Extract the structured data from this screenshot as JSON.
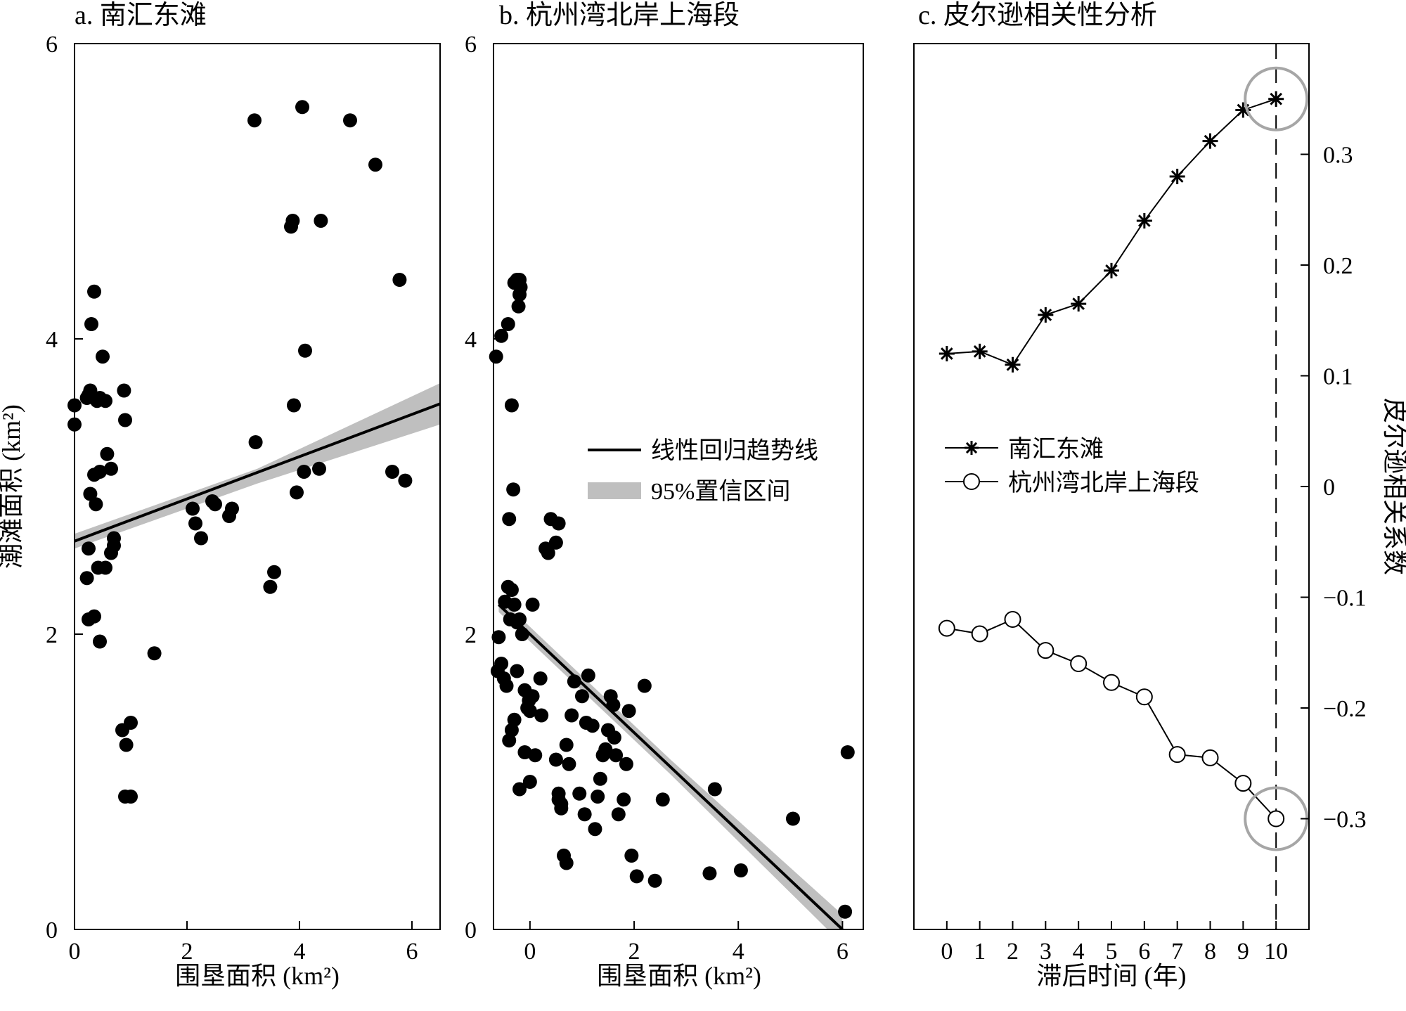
{
  "colors": {
    "point": "#000000",
    "line": "#000000",
    "ci_band": "#bfbfbf",
    "highlight_circle": "#a6a6a6"
  },
  "chart_data": [
    {
      "panel": "a",
      "type": "scatter",
      "title": "a. 南汇东滩",
      "xlabel": "围垦面积 (km²)",
      "ylabel": "潮滩面积 (km²)",
      "xlim": [
        0,
        6.5
      ],
      "ylim": [
        0,
        6
      ],
      "xticks": [
        0,
        2,
        4,
        6
      ],
      "yticks": [
        0,
        2,
        4,
        6
      ],
      "points": {
        "x": [
          0.0,
          0.0,
          0.22,
          0.28,
          0.25,
          0.3,
          0.35,
          0.4,
          0.45,
          0.55,
          0.5,
          0.58,
          0.45,
          0.38,
          0.28,
          0.35,
          0.25,
          0.42,
          0.55,
          0.65,
          0.7,
          0.88,
          0.9,
          0.7,
          0.65,
          0.22,
          0.35,
          0.25,
          0.45,
          0.85,
          0.92,
          1.0,
          0.9,
          1.0,
          1.42,
          2.1,
          2.15,
          2.25,
          2.45,
          2.5,
          2.75,
          2.8,
          3.2,
          3.22,
          3.48,
          3.55,
          3.85,
          3.88,
          3.9,
          3.95,
          4.05,
          4.08,
          4.1,
          4.35,
          4.38,
          4.9,
          5.35,
          5.65,
          5.78,
          5.88
        ],
        "y": [
          3.55,
          3.42,
          3.6,
          3.65,
          3.62,
          4.1,
          4.32,
          3.58,
          3.6,
          3.58,
          3.88,
          3.22,
          3.1,
          2.88,
          2.95,
          3.08,
          2.58,
          2.45,
          2.45,
          2.55,
          2.6,
          3.65,
          3.45,
          2.65,
          3.12,
          2.38,
          2.12,
          2.1,
          1.95,
          1.35,
          1.25,
          1.4,
          0.9,
          0.9,
          1.87,
          2.85,
          2.75,
          2.65,
          2.9,
          2.88,
          2.8,
          2.85,
          5.48,
          3.3,
          2.32,
          2.42,
          4.76,
          4.8,
          3.55,
          2.96,
          5.57,
          3.1,
          3.92,
          3.12,
          4.8,
          5.48,
          5.18,
          3.1,
          4.4,
          3.04
        ]
      },
      "trend_line": {
        "x": [
          0,
          6.5
        ],
        "y": [
          2.63,
          3.56
        ]
      },
      "ci_band": {
        "x": [
          0,
          3.25,
          6.5
        ],
        "upper": [
          2.68,
          3.12,
          3.7
        ],
        "lower": [
          2.58,
          3.02,
          3.42
        ]
      }
    },
    {
      "panel": "b",
      "type": "scatter",
      "title": "b. 杭州湾北岸上海段",
      "xlabel": "围垦面积 (km²)",
      "ylabel": "",
      "xlim": [
        -0.7,
        6.4
      ],
      "ylim": [
        0,
        6
      ],
      "xticks": [
        0,
        2,
        4,
        6
      ],
      "yticks": [
        0,
        2,
        4,
        6
      ],
      "points": {
        "x": [
          -0.65,
          -0.55,
          -0.42,
          -0.35,
          -0.3,
          -0.25,
          -0.2,
          -0.22,
          -0.18,
          -0.2,
          -0.4,
          -0.32,
          -0.48,
          -0.6,
          -0.62,
          -0.55,
          -0.5,
          -0.42,
          -0.38,
          -0.35,
          -0.3,
          -0.25,
          -0.2,
          -0.15,
          -0.1,
          -0.05,
          -0.02,
          0.0,
          0.05,
          0.1,
          0.2,
          0.22,
          -0.45,
          -0.25,
          -0.1,
          0.05,
          0.5,
          0.55,
          0.6,
          0.7,
          0.75,
          -0.35,
          -0.4,
          -0.3,
          -0.2,
          0.0,
          0.3,
          0.35,
          0.4,
          0.5,
          0.55,
          0.55,
          0.6,
          0.65,
          0.7,
          0.8,
          0.85,
          0.95,
          1.0,
          1.05,
          1.08,
          1.12,
          1.2,
          1.25,
          1.3,
          1.35,
          1.4,
          1.45,
          1.5,
          1.55,
          1.6,
          1.62,
          1.65,
          1.7,
          1.8,
          1.85,
          1.9,
          1.95,
          2.05,
          2.2,
          2.4,
          2.55,
          3.45,
          3.55,
          4.05,
          5.05,
          6.05,
          6.1
        ],
        "y": [
          3.88,
          4.02,
          4.1,
          3.55,
          4.38,
          4.4,
          4.3,
          4.22,
          4.35,
          4.4,
          2.78,
          2.98,
          2.22,
          1.98,
          1.75,
          1.8,
          1.7,
          2.32,
          2.1,
          2.3,
          2.2,
          2.08,
          2.1,
          2.0,
          1.62,
          1.5,
          1.55,
          1.48,
          1.58,
          1.18,
          1.7,
          1.45,
          1.65,
          1.75,
          1.2,
          2.2,
          1.15,
          0.88,
          0.82,
          1.25,
          1.12,
          1.35,
          1.28,
          1.42,
          0.95,
          1.0,
          2.58,
          2.55,
          2.78,
          2.62,
          2.75,
          0.92,
          0.85,
          0.5,
          0.45,
          1.45,
          1.68,
          0.92,
          1.58,
          0.78,
          1.4,
          1.72,
          1.38,
          0.68,
          0.9,
          1.02,
          1.18,
          1.22,
          1.35,
          1.58,
          1.52,
          1.3,
          1.18,
          0.78,
          0.88,
          1.12,
          1.48,
          0.5,
          0.36,
          1.65,
          0.33,
          0.88,
          0.38,
          0.95,
          0.4,
          0.75,
          0.12,
          1.2
        ],
        "note_ignore": ""
      },
      "trend_line": {
        "x": [
          -0.6,
          6.0
        ],
        "y": [
          2.2,
          0.0
        ]
      },
      "ci_band": {
        "x": [
          -0.6,
          2.7,
          6.0
        ],
        "upper": [
          2.25,
          1.15,
          0.1
        ],
        "lower": [
          2.15,
          1.05,
          -0.1
        ]
      },
      "legend": {
        "line_label": "线性回归趋势线",
        "band_label": "95%置信区间"
      }
    },
    {
      "panel": "c",
      "type": "line",
      "title": "c. 皮尔逊相关性分析",
      "xlabel": "滞后时间 (年)",
      "ylabel": "皮尔逊相关系数",
      "xlim": [
        -1,
        11
      ],
      "ylim": [
        -0.4,
        0.4
      ],
      "xticks": [
        0,
        1,
        2,
        3,
        4,
        5,
        6,
        7,
        8,
        9,
        10
      ],
      "yticks": [
        0.3,
        0.2,
        0.1,
        0,
        -0.1,
        -0.2,
        -0.3
      ],
      "ytick_labels": [
        "0.3",
        "0.2",
        "0.1",
        "0",
        "−0.1",
        "−0.2",
        "−0.3"
      ],
      "x": [
        0,
        1,
        2,
        3,
        4,
        5,
        6,
        7,
        8,
        9,
        10
      ],
      "series": [
        {
          "name": "南汇东滩",
          "marker": "asterisk",
          "values": [
            0.12,
            0.122,
            0.11,
            0.155,
            0.165,
            0.195,
            0.24,
            0.28,
            0.312,
            0.34,
            0.35
          ]
        },
        {
          "name": "杭州湾北岸上海段",
          "marker": "open-circle",
          "values": [
            -0.128,
            -0.133,
            -0.12,
            -0.148,
            -0.16,
            -0.177,
            -0.19,
            -0.242,
            -0.245,
            -0.268,
            -0.3
          ]
        }
      ],
      "reference_line_x": 10,
      "highlight_points": [
        {
          "x": 10,
          "y": 0.35
        },
        {
          "x": 10,
          "y": -0.3
        }
      ]
    }
  ]
}
